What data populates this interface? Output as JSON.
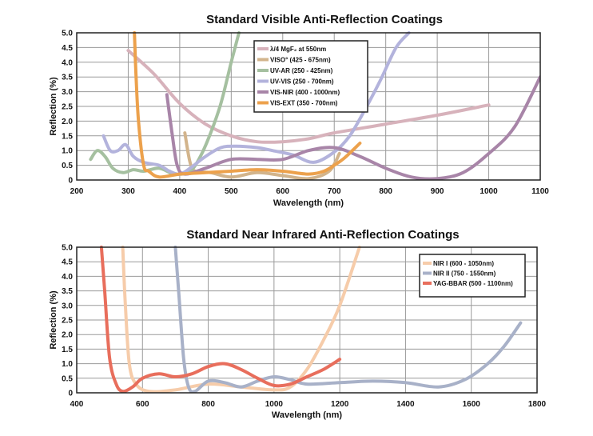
{
  "chart_data": [
    {
      "type": "line",
      "title": "Standard Visible Anti-Reflection Coatings",
      "xlabel": "Wavelength (nm)",
      "ylabel": "Reflection (%)",
      "xlim": [
        200,
        1100
      ],
      "ylim": [
        0,
        5.0
      ],
      "xticks": [
        "200",
        "300",
        "400",
        "500",
        "600",
        "700",
        "800",
        "900",
        "1000",
        "1100"
      ],
      "yticks": [
        "0",
        "0.5",
        "1.0",
        "1.5",
        "2.0",
        "2.5",
        "3.0",
        "3.5",
        "4.0",
        "4.5",
        "5.0"
      ],
      "grid": true,
      "legend_position": "top-center",
      "series": [
        {
          "name": "λ/4 MgF₂ at 550nm",
          "color": "#d7b2bb",
          "points": [
            [
              300,
              4.4
            ],
            [
              350,
              3.6
            ],
            [
              400,
              2.6
            ],
            [
              450,
              1.9
            ],
            [
              500,
              1.5
            ],
            [
              550,
              1.3
            ],
            [
              600,
              1.3
            ],
            [
              650,
              1.4
            ],
            [
              700,
              1.6
            ],
            [
              800,
              1.9
            ],
            [
              900,
              2.2
            ],
            [
              1000,
              2.55
            ]
          ]
        },
        {
          "name": "VISO° (425 - 675nm)",
          "color": "#d2b48c",
          "points": [
            [
              410,
              1.6
            ],
            [
              420,
              0.6
            ],
            [
              430,
              0.3
            ],
            [
              460,
              0.25
            ],
            [
              500,
              0.1
            ],
            [
              550,
              0.25
            ],
            [
              600,
              0.15
            ],
            [
              650,
              0.05
            ],
            [
              690,
              0.3
            ],
            [
              710,
              0.9
            ]
          ]
        },
        {
          "name": "UV-AR (250 - 425nm)",
          "color": "#a5c0a0",
          "points": [
            [
              227,
              0.7
            ],
            [
              240,
              1.0
            ],
            [
              255,
              0.8
            ],
            [
              270,
              0.4
            ],
            [
              290,
              0.25
            ],
            [
              310,
              0.35
            ],
            [
              330,
              0.3
            ],
            [
              360,
              0.4
            ],
            [
              390,
              0.2
            ],
            [
              420,
              0.3
            ],
            [
              440,
              0.8
            ],
            [
              460,
              1.6
            ],
            [
              480,
              2.6
            ],
            [
              500,
              4.0
            ],
            [
              515,
              5.0
            ]
          ]
        },
        {
          "name": "UV-VIS (250 - 700nm)",
          "color": "#b3b3dc",
          "points": [
            [
              252,
              1.5
            ],
            [
              265,
              1.0
            ],
            [
              280,
              1.0
            ],
            [
              295,
              1.2
            ],
            [
              310,
              0.8
            ],
            [
              330,
              0.6
            ],
            [
              360,
              0.5
            ],
            [
              380,
              0.3
            ],
            [
              400,
              0.2
            ],
            [
              420,
              0.4
            ],
            [
              450,
              0.8
            ],
            [
              480,
              1.1
            ],
            [
              510,
              1.15
            ],
            [
              550,
              1.1
            ],
            [
              580,
              1.0
            ],
            [
              620,
              0.85
            ],
            [
              660,
              0.6
            ],
            [
              700,
              0.95
            ],
            [
              730,
              1.5
            ],
            [
              760,
              2.4
            ],
            [
              790,
              3.4
            ],
            [
              820,
              4.5
            ],
            [
              845,
              5.0
            ]
          ]
        },
        {
          "name": "VIS-NIR (400 - 1000nm)",
          "color": "#a885a8",
          "points": [
            [
              375,
              2.9
            ],
            [
              385,
              1.6
            ],
            [
              395,
              0.5
            ],
            [
              410,
              0.2
            ],
            [
              450,
              0.4
            ],
            [
              500,
              0.7
            ],
            [
              550,
              0.7
            ],
            [
              600,
              0.7
            ],
            [
              650,
              1.0
            ],
            [
              700,
              1.1
            ],
            [
              750,
              0.8
            ],
            [
              800,
              0.4
            ],
            [
              850,
              0.1
            ],
            [
              900,
              0.05
            ],
            [
              950,
              0.25
            ],
            [
              1000,
              0.9
            ],
            [
              1050,
              1.8
            ],
            [
              1100,
              3.5
            ]
          ]
        },
        {
          "name": "VIS-EXT (350 - 700nm)",
          "color": "#eca14c",
          "points": [
            [
              312,
              5.0
            ],
            [
              315,
              3.6
            ],
            [
              320,
              2.0
            ],
            [
              330,
              0.5
            ],
            [
              340,
              0.3
            ],
            [
              360,
              0.1
            ],
            [
              400,
              0.2
            ],
            [
              450,
              0.25
            ],
            [
              500,
              0.3
            ],
            [
              550,
              0.35
            ],
            [
              600,
              0.3
            ],
            [
              650,
              0.2
            ],
            [
              680,
              0.3
            ],
            [
              700,
              0.5
            ],
            [
              720,
              0.75
            ],
            [
              750,
              1.25
            ]
          ]
        }
      ]
    },
    {
      "type": "line",
      "title": "Standard Near Infrared Anti-Reflection Coatings",
      "xlabel": "Wavelength (nm)",
      "ylabel": "Reflection (%)",
      "xlim": [
        400,
        1800
      ],
      "ylim": [
        0,
        5.0
      ],
      "xticks": [
        "400",
        "600",
        "800",
        "1000",
        "1200",
        "1400",
        "1600",
        "1800"
      ],
      "yticks": [
        "0",
        "0.5",
        "1.0",
        "1.5",
        "2.0",
        "2.5",
        "3.0",
        "3.5",
        "4.0",
        "4.5",
        "5.0"
      ],
      "grid": true,
      "legend_position": "top-right",
      "series": [
        {
          "name": "NIR I (600 - 1050nm)",
          "color": "#f6ccaa",
          "points": [
            [
              540,
              5.0
            ],
            [
              548,
              3.0
            ],
            [
              560,
              1.0
            ],
            [
              580,
              0.3
            ],
            [
              620,
              0.05
            ],
            [
              700,
              0.1
            ],
            [
              800,
              0.3
            ],
            [
              900,
              0.2
            ],
            [
              1000,
              0.1
            ],
            [
              1050,
              0.2
            ],
            [
              1100,
              0.8
            ],
            [
              1150,
              1.8
            ],
            [
              1200,
              3.0
            ],
            [
              1260,
              5.0
            ]
          ]
        },
        {
          "name": "NIR II (750 - 1550nm)",
          "color": "#a8b1c8",
          "points": [
            [
              700,
              5.0
            ],
            [
              710,
              3.5
            ],
            [
              725,
              1.2
            ],
            [
              740,
              0.2
            ],
            [
              760,
              0.05
            ],
            [
              800,
              0.4
            ],
            [
              850,
              0.35
            ],
            [
              900,
              0.2
            ],
            [
              950,
              0.4
            ],
            [
              1000,
              0.55
            ],
            [
              1050,
              0.45
            ],
            [
              1100,
              0.3
            ],
            [
              1200,
              0.35
            ],
            [
              1300,
              0.4
            ],
            [
              1400,
              0.35
            ],
            [
              1500,
              0.2
            ],
            [
              1580,
              0.45
            ],
            [
              1650,
              1.0
            ],
            [
              1700,
              1.6
            ],
            [
              1750,
              2.4
            ]
          ]
        },
        {
          "name": "YAG-BBAR (500 - 1100nm)",
          "color": "#e86e5c",
          "points": [
            [
              475,
              5.0
            ],
            [
              485,
              3.5
            ],
            [
              500,
              1.2
            ],
            [
              520,
              0.3
            ],
            [
              540,
              0.05
            ],
            [
              570,
              0.2
            ],
            [
              600,
              0.5
            ],
            [
              650,
              0.65
            ],
            [
              700,
              0.55
            ],
            [
              750,
              0.65
            ],
            [
              800,
              0.9
            ],
            [
              850,
              1.0
            ],
            [
              900,
              0.8
            ],
            [
              950,
              0.5
            ],
            [
              1000,
              0.25
            ],
            [
              1050,
              0.3
            ],
            [
              1100,
              0.55
            ],
            [
              1150,
              0.8
            ],
            [
              1200,
              1.15
            ]
          ]
        }
      ]
    }
  ]
}
